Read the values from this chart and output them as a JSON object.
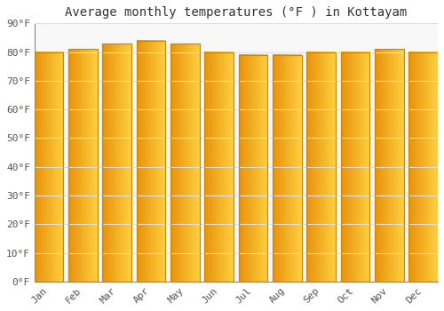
{
  "title": "Average monthly temperatures (°F ) in Kottayam",
  "months": [
    "Jan",
    "Feb",
    "Mar",
    "Apr",
    "May",
    "Jun",
    "Jul",
    "Aug",
    "Sep",
    "Oct",
    "Nov",
    "Dec"
  ],
  "values": [
    80,
    81,
    83,
    84,
    83,
    80,
    79,
    79,
    80,
    80,
    81,
    80
  ],
  "bar_color_left": "#E8920A",
  "bar_color_right": "#FFD040",
  "bar_edge_color": "#CC8800",
  "background_color": "#FFFFFF",
  "plot_bg_color": "#F8F8F8",
  "grid_color": "#E0E0E0",
  "ylim": [
    0,
    90
  ],
  "yticks": [
    0,
    10,
    20,
    30,
    40,
    50,
    60,
    70,
    80,
    90
  ],
  "ytick_labels": [
    "0°F",
    "10°F",
    "20°F",
    "30°F",
    "40°F",
    "50°F",
    "60°F",
    "70°F",
    "80°F",
    "90°F"
  ],
  "title_fontsize": 10,
  "tick_fontsize": 8,
  "bar_width": 0.85
}
